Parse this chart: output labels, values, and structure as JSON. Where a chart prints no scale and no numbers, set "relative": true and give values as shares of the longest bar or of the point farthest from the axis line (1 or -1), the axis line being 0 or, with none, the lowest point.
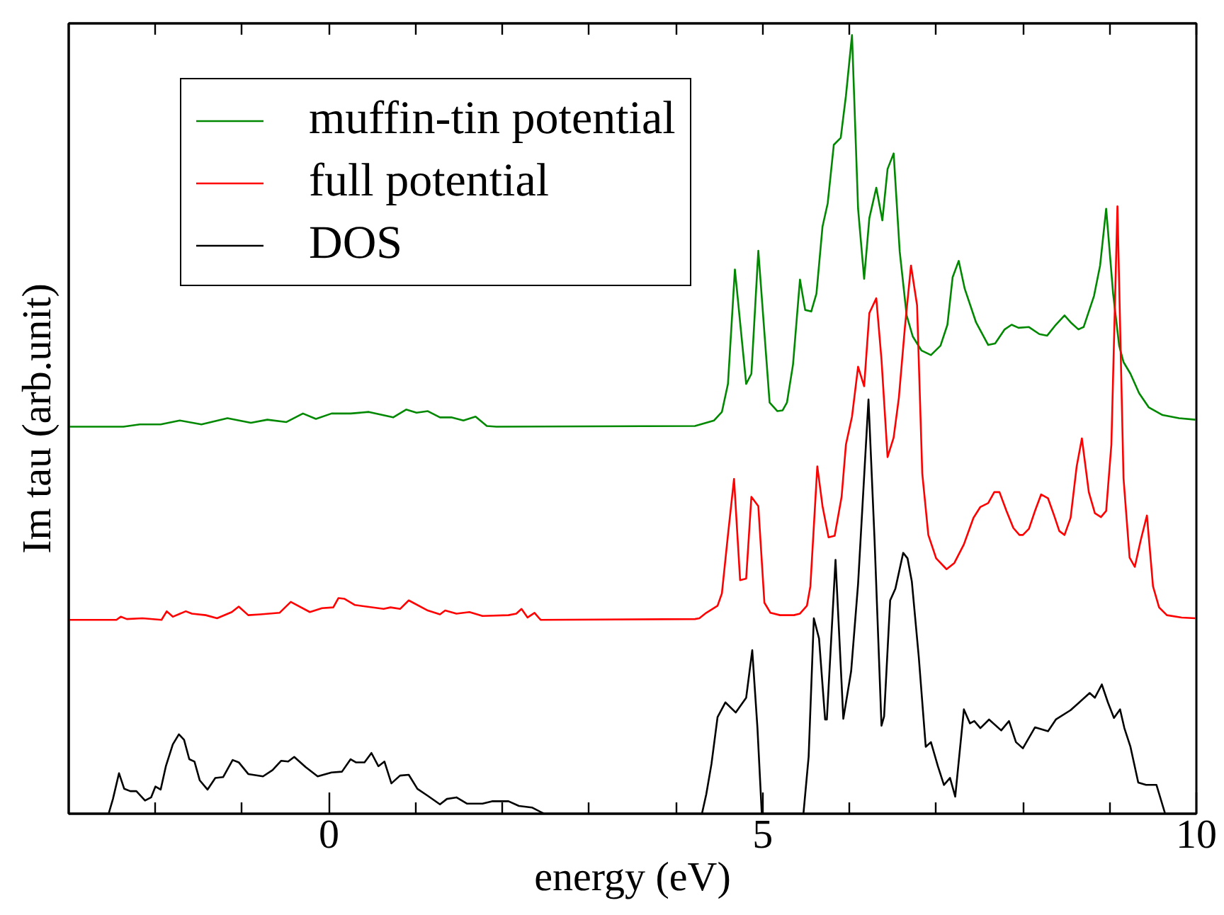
{
  "chart_data": {
    "type": "line",
    "xlabel": "energy (eV)",
    "ylabel": "Im tau (arb.unit)",
    "relative": true,
    "xlim": [
      -3,
      10
    ],
    "xticks": [
      {
        "value": -2,
        "label": null
      },
      {
        "value": -1,
        "label": null
      },
      0,
      {
        "value": 1,
        "label": null
      },
      {
        "value": 2,
        "label": null
      },
      {
        "value": 3,
        "label": null
      },
      {
        "value": 4,
        "label": null
      },
      5,
      {
        "value": 6,
        "label": null
      },
      {
        "value": 7,
        "label": null
      },
      {
        "value": 8,
        "label": null
      },
      {
        "value": 9,
        "label": null
      },
      10
    ],
    "grid": false,
    "legend": "top left",
    "series": [
      {
        "name": "muffin-tin potential",
        "color": "#008800",
        "x": [
          -3.0,
          -2.37,
          -2.18,
          -1.94,
          -1.72,
          -1.47,
          -1.17,
          -0.9,
          -0.71,
          -0.49,
          -0.3,
          -0.15,
          0.03,
          0.25,
          0.46,
          0.74,
          0.89,
          1.01,
          1.14,
          1.28,
          1.41,
          1.55,
          1.69,
          1.82,
          1.93,
          4.22,
          4.44,
          4.53,
          4.6,
          4.68,
          4.81,
          4.87,
          4.95,
          5.08,
          5.17,
          5.23,
          5.28,
          5.35,
          5.43,
          5.49,
          5.56,
          5.62,
          5.69,
          5.75,
          5.82,
          5.9,
          5.96,
          6.03,
          6.1,
          6.17,
          6.23,
          6.31,
          6.38,
          6.44,
          6.51,
          6.58,
          6.66,
          6.73,
          6.83,
          6.94,
          7.05,
          7.13,
          7.19,
          7.26,
          7.33,
          7.46,
          7.6,
          7.68,
          7.79,
          7.87,
          7.95,
          8.07,
          8.19,
          8.28,
          8.38,
          8.48,
          8.56,
          8.64,
          8.7,
          8.82,
          8.89,
          8.96,
          9.04,
          9.11,
          9.16,
          9.24,
          9.34,
          9.45,
          9.61,
          9.8,
          9.99
        ],
        "values": [
          0.497,
          0.497,
          0.5,
          0.5,
          0.505,
          0.5,
          0.508,
          0.502,
          0.506,
          0.503,
          0.514,
          0.507,
          0.514,
          0.514,
          0.516,
          0.509,
          0.519,
          0.515,
          0.517,
          0.509,
          0.509,
          0.505,
          0.51,
          0.498,
          0.497,
          0.498,
          0.505,
          0.516,
          0.552,
          0.699,
          0.552,
          0.565,
          0.723,
          0.528,
          0.517,
          0.518,
          0.528,
          0.577,
          0.686,
          0.647,
          0.645,
          0.668,
          0.754,
          0.784,
          0.859,
          0.868,
          0.922,
          1.0,
          0.777,
          0.687,
          0.765,
          0.804,
          0.762,
          0.828,
          0.848,
          0.722,
          0.64,
          0.613,
          0.595,
          0.589,
          0.601,
          0.628,
          0.689,
          0.71,
          0.674,
          0.631,
          0.602,
          0.604,
          0.622,
          0.628,
          0.624,
          0.625,
          0.616,
          0.614,
          0.628,
          0.64,
          0.63,
          0.622,
          0.625,
          0.665,
          0.704,
          0.777,
          0.668,
          0.601,
          0.58,
          0.565,
          0.54,
          0.522,
          0.512,
          0.508,
          0.506
        ]
      },
      {
        "name": "full potential",
        "color": "#ff0000",
        "x": [
          -3.0,
          -2.45,
          -2.4,
          -2.33,
          -2.15,
          -1.93,
          -1.87,
          -1.8,
          -1.65,
          -1.58,
          -1.42,
          -1.29,
          -1.12,
          -1.04,
          -0.93,
          -0.79,
          -0.57,
          -0.44,
          -0.22,
          -0.08,
          0.05,
          0.11,
          0.18,
          0.3,
          0.63,
          0.71,
          0.82,
          0.92,
          1.14,
          1.28,
          1.34,
          1.47,
          1.62,
          1.77,
          2.07,
          2.16,
          2.22,
          2.29,
          2.37,
          2.44,
          4.22,
          4.27,
          4.35,
          4.48,
          4.53,
          4.6,
          4.67,
          4.74,
          4.81,
          4.87,
          4.95,
          5.02,
          5.09,
          5.2,
          5.36,
          5.43,
          5.51,
          5.55,
          5.63,
          5.69,
          5.76,
          5.83,
          5.91,
          5.96,
          6.03,
          6.1,
          6.17,
          6.23,
          6.31,
          6.37,
          6.44,
          6.51,
          6.57,
          6.64,
          6.71,
          6.78,
          6.84,
          6.91,
          7.0,
          7.12,
          7.21,
          7.32,
          7.43,
          7.51,
          7.6,
          7.67,
          7.73,
          7.81,
          7.89,
          7.96,
          8.0,
          8.07,
          8.14,
          8.21,
          8.29,
          8.36,
          8.42,
          8.48,
          8.55,
          8.62,
          8.68,
          8.76,
          8.83,
          8.9,
          8.96,
          9.02,
          9.09,
          9.16,
          9.23,
          9.29,
          9.36,
          9.43,
          9.5,
          9.57,
          9.66,
          9.83,
          9.99
        ],
        "values": [
          0.249,
          0.249,
          0.253,
          0.25,
          0.251,
          0.249,
          0.26,
          0.253,
          0.26,
          0.257,
          0.255,
          0.251,
          0.259,
          0.266,
          0.255,
          0.256,
          0.258,
          0.272,
          0.259,
          0.264,
          0.265,
          0.277,
          0.276,
          0.268,
          0.263,
          0.265,
          0.263,
          0.274,
          0.261,
          0.256,
          0.261,
          0.257,
          0.259,
          0.254,
          0.255,
          0.257,
          0.263,
          0.252,
          0.258,
          0.249,
          0.25,
          0.251,
          0.258,
          0.267,
          0.283,
          0.358,
          0.43,
          0.3,
          0.302,
          0.407,
          0.395,
          0.271,
          0.258,
          0.255,
          0.255,
          0.257,
          0.267,
          0.292,
          0.446,
          0.395,
          0.355,
          0.357,
          0.407,
          0.474,
          0.51,
          0.574,
          0.549,
          0.643,
          0.662,
          0.583,
          0.458,
          0.483,
          0.534,
          0.625,
          0.704,
          0.653,
          0.437,
          0.358,
          0.328,
          0.314,
          0.322,
          0.346,
          0.38,
          0.394,
          0.399,
          0.413,
          0.413,
          0.389,
          0.367,
          0.358,
          0.358,
          0.366,
          0.389,
          0.41,
          0.405,
          0.383,
          0.363,
          0.358,
          0.38,
          0.446,
          0.482,
          0.413,
          0.386,
          0.381,
          0.389,
          0.474,
          0.78,
          0.431,
          0.329,
          0.317,
          0.352,
          0.383,
          0.292,
          0.265,
          0.255,
          0.252,
          0.251
        ]
      },
      {
        "name": "DOS",
        "color": "#000000",
        "x": [
          -3.0,
          -2.54,
          -2.49,
          -2.42,
          -2.36,
          -2.29,
          -2.22,
          -2.12,
          -2.05,
          -2.0,
          -1.94,
          -1.88,
          -1.8,
          -1.73,
          -1.67,
          -1.61,
          -1.55,
          -1.49,
          -1.4,
          -1.31,
          -1.22,
          -1.11,
          -1.04,
          -0.93,
          -0.76,
          -0.65,
          -0.55,
          -0.47,
          -0.4,
          -0.27,
          -0.13,
          0.03,
          0.15,
          0.25,
          0.31,
          0.41,
          0.49,
          0.57,
          0.64,
          0.72,
          0.82,
          0.92,
          1.02,
          1.14,
          1.28,
          1.36,
          1.47,
          1.59,
          1.77,
          1.88,
          2.07,
          2.19,
          2.34,
          2.48,
          4.3,
          4.35,
          4.41,
          4.48,
          4.57,
          4.69,
          4.81,
          4.88,
          4.94,
          4.99,
          5.47,
          5.53,
          5.59,
          5.65,
          5.72,
          5.74,
          5.84,
          5.93,
          6.02,
          6.1,
          6.22,
          6.29,
          6.37,
          6.4,
          6.47,
          6.53,
          6.62,
          6.67,
          6.72,
          6.8,
          6.88,
          6.94,
          7.02,
          7.09,
          7.16,
          7.22,
          7.32,
          7.39,
          7.44,
          7.51,
          7.61,
          7.75,
          7.84,
          7.92,
          8.0,
          8.14,
          8.29,
          8.38,
          8.55,
          8.77,
          8.83,
          8.91,
          8.98,
          9.05,
          9.12,
          9.17,
          9.24,
          9.33,
          9.42,
          9.54,
          9.64,
          9.99
        ],
        "values": [
          0,
          0,
          0.019,
          0.052,
          0.032,
          0.029,
          0.029,
          0.017,
          0.021,
          0.035,
          0.031,
          0.061,
          0.089,
          0.102,
          0.095,
          0.07,
          0.067,
          0.043,
          0.031,
          0.046,
          0.047,
          0.069,
          0.066,
          0.051,
          0.048,
          0.056,
          0.068,
          0.067,
          0.073,
          0.06,
          0.048,
          0.053,
          0.054,
          0.07,
          0.066,
          0.066,
          0.078,
          0.061,
          0.067,
          0.039,
          0.049,
          0.05,
          0.032,
          0.023,
          0.012,
          0.019,
          0.021,
          0.013,
          0.013,
          0.016,
          0.016,
          0.01,
          0.008,
          0,
          0,
          0.025,
          0.064,
          0.124,
          0.143,
          0.13,
          0.149,
          0.21,
          0.11,
          0,
          0,
          0.073,
          0.251,
          0.225,
          0.121,
          0.121,
          0.326,
          0.122,
          0.183,
          0.295,
          0.532,
          0.352,
          0.113,
          0.125,
          0.274,
          0.289,
          0.335,
          0.328,
          0.298,
          0.201,
          0.086,
          0.092,
          0.061,
          0.037,
          0.046,
          0.022,
          0.134,
          0.116,
          0.119,
          0.11,
          0.121,
          0.107,
          0.119,
          0.092,
          0.084,
          0.111,
          0.106,
          0.121,
          0.133,
          0.155,
          0.149,
          0.166,
          0.143,
          0.123,
          0.134,
          0.11,
          0.086,
          0.04,
          0.037,
          0.037,
          0,
          0
        ]
      }
    ]
  }
}
